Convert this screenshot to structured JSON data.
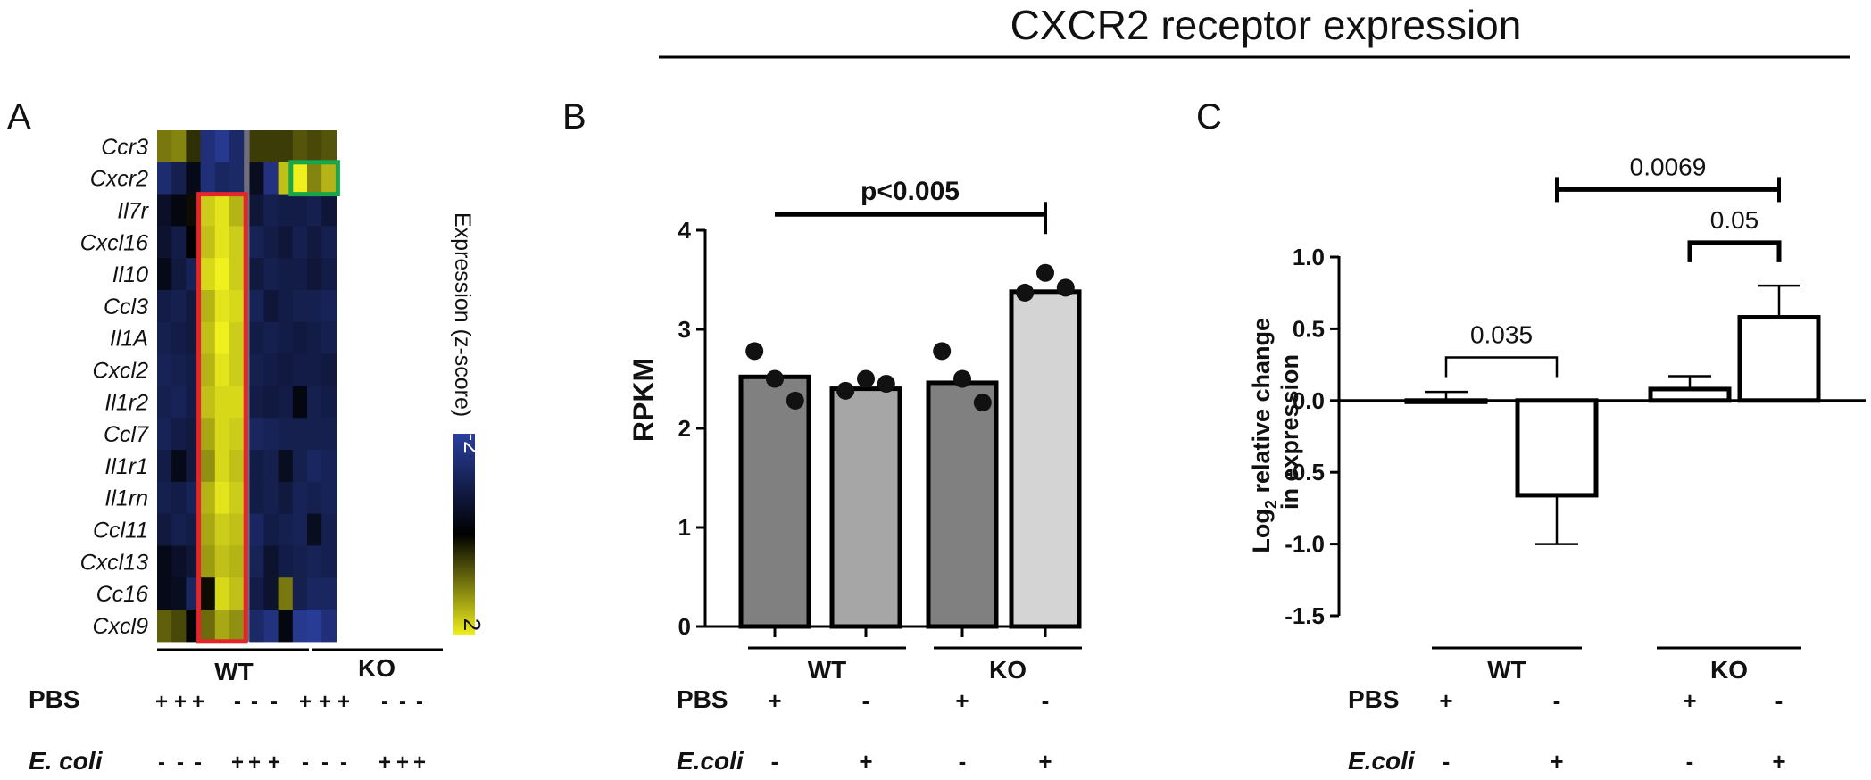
{
  "figure": {
    "title": "CXCR2 receptor expression"
  },
  "panels": {
    "a": {
      "letter": "A"
    },
    "b": {
      "letter": "B"
    },
    "c": {
      "letter": "C"
    }
  },
  "groups": {
    "wt": "WT",
    "ko": "KO"
  },
  "conditions": {
    "pbs": "PBS",
    "ecoli_a": "E. coli",
    "ecoli_bc": "E.coli"
  },
  "chart_data": [
    {
      "id": "A",
      "type": "heatmap",
      "rows": [
        "Ccr3",
        "Cxcr2",
        "Il7r",
        "Cxcl16",
        "Il10",
        "Ccl3",
        "Il1A",
        "Cxcl2",
        "Il1r2",
        "Ccl7",
        "Il1r1",
        "Il1rn",
        "Ccl11",
        "Cxcl13",
        "Cc16",
        "Cxcl9"
      ],
      "columns_pbs": [
        "+",
        "+",
        "+",
        "-",
        "-",
        "-",
        "+",
        "+",
        "+",
        "-",
        "-",
        "-"
      ],
      "columns_ecoli": [
        "-",
        "-",
        "-",
        "+",
        "+",
        "+",
        "-",
        "-",
        "-",
        "+",
        "+",
        "+"
      ],
      "column_groups": [
        {
          "name": "WT",
          "count": 6
        },
        {
          "name": "KO",
          "count": 6
        }
      ],
      "values": [
        [
          1.0,
          1.1,
          0.4,
          -1.5,
          -1.8,
          -1.3,
          0.5,
          0.5,
          0.5,
          0.7,
          0.6,
          0.7
        ],
        [
          -1.4,
          -1.0,
          -0.3,
          -1.5,
          -1.2,
          -1.3,
          -0.4,
          -1.6,
          1.6,
          2.0,
          1.1,
          1.5
        ],
        [
          -0.5,
          -0.2,
          0.1,
          1.7,
          1.9,
          1.5,
          -0.7,
          -1.0,
          -0.9,
          -0.9,
          -1.0,
          -0.7
        ],
        [
          -0.6,
          -0.9,
          0.0,
          1.6,
          1.9,
          1.7,
          -1.1,
          -0.9,
          -0.7,
          -1.0,
          -0.8,
          -1.0
        ],
        [
          -0.3,
          -0.8,
          -1.1,
          1.8,
          2.0,
          1.7,
          -0.8,
          -1.0,
          -0.9,
          -0.9,
          -0.7,
          -0.9
        ],
        [
          -0.9,
          -1.0,
          -0.8,
          1.5,
          1.9,
          1.8,
          -1.1,
          -0.7,
          -0.9,
          -1.0,
          -1.0,
          -1.1
        ],
        [
          -1.0,
          -0.9,
          -0.8,
          1.6,
          2.0,
          1.7,
          -0.9,
          -1.0,
          -0.9,
          -0.8,
          -0.9,
          -1.0
        ],
        [
          -1.1,
          -1.0,
          -0.9,
          1.5,
          1.9,
          1.7,
          -1.0,
          -0.9,
          -0.8,
          -0.9,
          -0.9,
          -0.8
        ],
        [
          -1.0,
          -1.1,
          -0.9,
          1.6,
          1.8,
          1.8,
          -0.9,
          -0.8,
          -0.9,
          -0.2,
          -1.0,
          -0.9
        ],
        [
          -1.1,
          -0.9,
          -0.8,
          1.4,
          1.8,
          1.7,
          -1.2,
          -1.1,
          -1.0,
          -1.0,
          -1.0,
          -1.0
        ],
        [
          -0.9,
          -0.3,
          -0.8,
          1.2,
          1.8,
          1.6,
          -0.9,
          -1.0,
          -0.4,
          -1.0,
          -1.2,
          -1.1
        ],
        [
          -1.0,
          -0.9,
          -1.1,
          1.5,
          1.9,
          1.7,
          -0.9,
          -1.0,
          -0.8,
          -1.1,
          -1.0,
          -1.1
        ],
        [
          -0.8,
          -1.0,
          -0.9,
          1.4,
          1.7,
          1.6,
          -1.2,
          -0.9,
          -1.0,
          -1.1,
          -0.4,
          -1.0
        ],
        [
          -0.3,
          -0.5,
          -0.7,
          1.3,
          1.6,
          1.5,
          -1.1,
          -0.6,
          -0.9,
          -1.0,
          -1.1,
          -1.0
        ],
        [
          -0.3,
          -0.4,
          -1.2,
          0.1,
          1.8,
          1.6,
          -0.9,
          -0.6,
          1.0,
          -1.0,
          -1.2,
          -1.2
        ],
        [
          0.8,
          0.6,
          -0.1,
          0.9,
          1.4,
          1.2,
          -1.3,
          -1.6,
          -0.2,
          -1.8,
          -1.9,
          -1.5
        ]
      ],
      "highlights": [
        {
          "color": "#e3262b",
          "rows": [
            2,
            15
          ],
          "cols": [
            3,
            5
          ]
        },
        {
          "color": "#19a64b",
          "rows": [
            1,
            1
          ],
          "cols": [
            9,
            11
          ]
        }
      ],
      "colorbar": {
        "label": "Expression (z-score)",
        "min": -2,
        "max": 2,
        "ticks": [
          "-2",
          "2"
        ],
        "colors": [
          "#2a3f9e",
          "#000000",
          "#f0f01e"
        ]
      }
    },
    {
      "id": "B",
      "type": "bar",
      "ylabel": "RPKM",
      "ylim": [
        0,
        4
      ],
      "yticks": [
        "0",
        "1",
        "2",
        "3",
        "4"
      ],
      "groups": [
        "WT",
        "WT",
        "KO",
        "KO"
      ],
      "pbs": [
        "+",
        "-",
        "+",
        "-"
      ],
      "ecoli": [
        "-",
        "+",
        "-",
        "+"
      ],
      "values": [
        2.52,
        2.4,
        2.46,
        3.38
      ],
      "points": [
        [
          2.78,
          2.5,
          2.28
        ],
        [
          2.38,
          2.5,
          2.45
        ],
        [
          2.78,
          2.5,
          2.26
        ],
        [
          3.37,
          3.57,
          3.42
        ]
      ],
      "colors": [
        "#808080",
        "#a6a6a6",
        "#808080",
        "#d4d4d4"
      ],
      "significance": [
        {
          "from": 0,
          "to": 3,
          "label": "p<0.005",
          "y": 4.16
        }
      ]
    },
    {
      "id": "C",
      "type": "bar",
      "ylabel": "Log2 relative change in expression",
      "ylabel_parts": {
        "line1_pre": "Log",
        "line1_sub": "2",
        "line1_post": " relative change",
        "line2": "in expression"
      },
      "ylim": [
        -1.5,
        1.0
      ],
      "yticks": [
        "1.0",
        "0.5",
        "0.0",
        "-0.5",
        "-1.0",
        "-1.5"
      ],
      "groups": [
        "WT",
        "WT",
        "KO",
        "KO"
      ],
      "pbs": [
        "+",
        "-",
        "+",
        "-"
      ],
      "ecoli": [
        "-",
        "+",
        "-",
        "+"
      ],
      "values": [
        0.0,
        -0.66,
        0.08,
        0.58
      ],
      "error_bars": [
        [
          0.0,
          0.06
        ],
        [
          -1.0,
          -0.66
        ],
        [
          0.08,
          0.17
        ],
        [
          0.58,
          0.8
        ]
      ],
      "significance": [
        {
          "from": 0,
          "to": 1,
          "label": "0.035",
          "y": 0.3,
          "style": "thin"
        },
        {
          "from": 2,
          "to": 3,
          "label": "0.05",
          "y": 1.1,
          "style": "thick"
        },
        {
          "from": 1,
          "to": 3,
          "label": "0.0069",
          "y": 1.47,
          "style": "thick"
        }
      ]
    }
  ]
}
